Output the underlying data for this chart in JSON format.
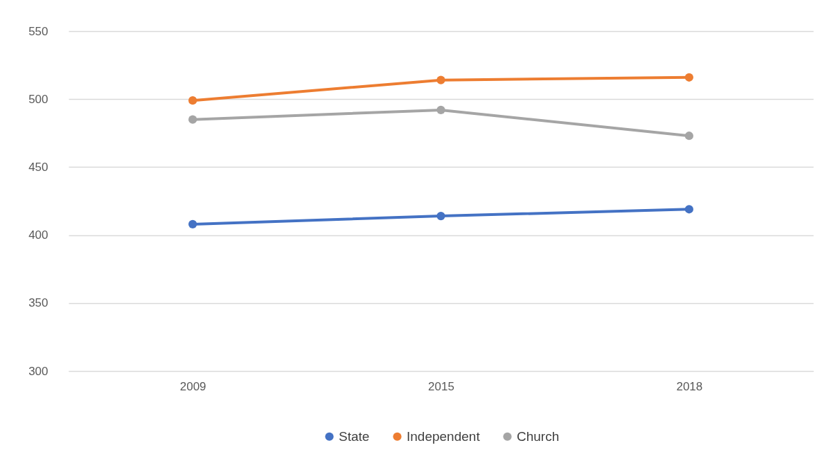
{
  "chart_data": {
    "type": "line",
    "categories": [
      "2009",
      "2015",
      "2018"
    ],
    "series": [
      {
        "name": "State",
        "color": "#4472c4",
        "values": [
          408,
          414,
          419
        ]
      },
      {
        "name": "Independent",
        "color": "#ed7d31",
        "values": [
          499,
          514,
          516
        ]
      },
      {
        "name": "Church",
        "color": "#a5a5a5",
        "values": [
          485,
          492,
          473
        ]
      }
    ],
    "ylim": [
      300,
      550
    ],
    "yticks": [
      300,
      350,
      400,
      450,
      500,
      550
    ],
    "grid": "y",
    "legend": "bottom",
    "marker": "circle",
    "line_style": "solid"
  }
}
